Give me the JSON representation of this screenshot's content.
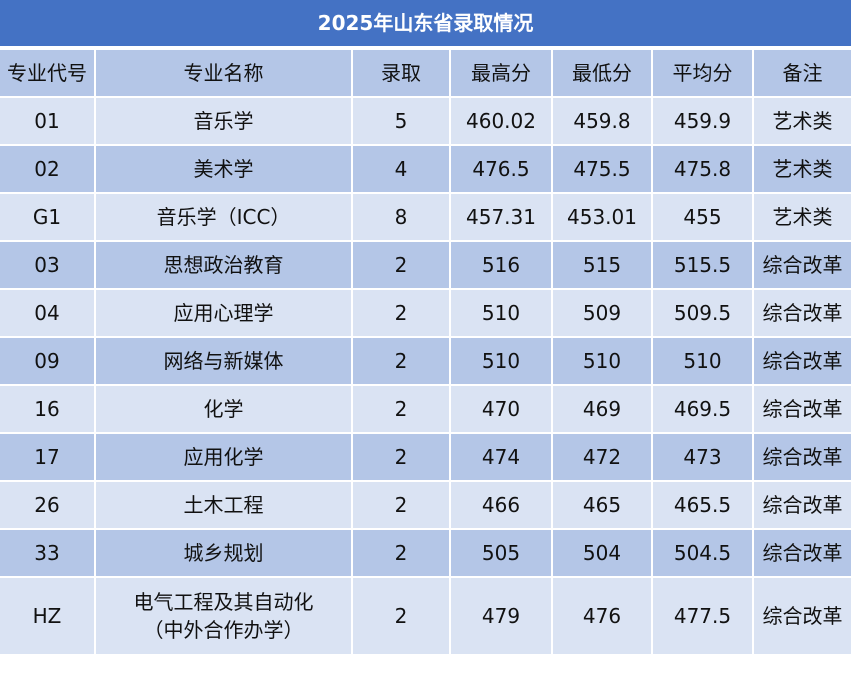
{
  "title": "2025年山东省录取情况",
  "table": {
    "header": [
      "专业代号",
      "专业名称",
      "录取",
      "最高分",
      "最低分",
      "平均分",
      "备注"
    ],
    "rows": [
      [
        "01",
        "音乐学",
        5,
        460.02,
        459.8,
        459.9,
        "艺术类"
      ],
      [
        "02",
        "美术学",
        4,
        476.5,
        475.5,
        475.8,
        "艺术类"
      ],
      [
        "G1",
        "音乐学（ICC）",
        8,
        457.31,
        453.01,
        455,
        "艺术类"
      ],
      [
        "03",
        "思想政治教育",
        2,
        516,
        515,
        515.5,
        "综合改革"
      ],
      [
        "04",
        "应用心理学",
        2,
        510,
        509,
        509.5,
        "综合改革"
      ],
      [
        "09",
        "网络与新媒体",
        2,
        510,
        510,
        510,
        "综合改革"
      ],
      [
        "16",
        "化学",
        2,
        470,
        469,
        469.5,
        "综合改革"
      ],
      [
        "17",
        "应用化学",
        2,
        474,
        472,
        473,
        "综合改革"
      ],
      [
        "26",
        "土木工程",
        2,
        466,
        465,
        465.5,
        "综合改革"
      ],
      [
        "33",
        "城乡规划",
        2,
        505,
        504,
        504.5,
        "综合改革"
      ],
      [
        "HZ",
        "电气工程及其自动化\n（中外合作办学）",
        2,
        479,
        476,
        477.5,
        "综合改革"
      ]
    ]
  }
}
